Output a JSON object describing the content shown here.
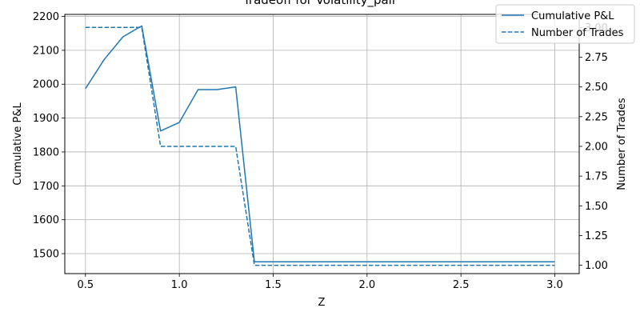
{
  "chart_data": {
    "type": "line",
    "title": "Tradeoff for Volatility_pair",
    "xlabel": "Z",
    "ylabel_left": "Cumulative P&L",
    "ylabel_right": "Number of Trades",
    "xlim": [
      0.39,
      3.13
    ],
    "ylim_left": [
      1441,
      2206
    ],
    "ylim_right": [
      0.93,
      3.11
    ],
    "x_ticks": [
      0.5,
      1.0,
      1.5,
      2.0,
      2.5,
      3.0
    ],
    "x_tick_labels": [
      "0.5",
      "1.0",
      "1.5",
      "2.0",
      "2.5",
      "3.0"
    ],
    "y_left_ticks": [
      1500,
      1600,
      1700,
      1800,
      1900,
      2000,
      2100,
      2200
    ],
    "y_left_tick_labels": [
      "1500",
      "1600",
      "1700",
      "1800",
      "1900",
      "2000",
      "2100",
      "2200"
    ],
    "y_right_ticks": [
      1.0,
      1.25,
      1.5,
      1.75,
      2.0,
      2.25,
      2.5,
      2.75,
      3.0
    ],
    "y_right_tick_labels": [
      "1.00",
      "1.25",
      "1.50",
      "1.75",
      "2.00",
      "2.25",
      "2.50",
      "2.75",
      "3.00"
    ],
    "grid": true,
    "legend_position": "top-right",
    "color": "#1f77b4",
    "series": [
      {
        "name": "Cumulative P&L",
        "axis": "left",
        "style": "solid",
        "x": [
          0.5,
          0.6,
          0.7,
          0.8,
          0.9,
          1.0,
          1.1,
          1.2,
          1.3,
          1.4,
          1.5,
          1.6,
          1.7,
          1.8,
          1.9,
          2.0,
          2.1,
          2.2,
          2.3,
          2.4,
          2.5,
          2.6,
          2.7,
          2.8,
          2.9,
          3.0
        ],
        "values": [
          1987,
          2073,
          2140,
          2172,
          1862,
          1887,
          1984,
          1984,
          1992,
          1476,
          1476,
          1476,
          1476,
          1476,
          1476,
          1476,
          1476,
          1476,
          1476,
          1476,
          1476,
          1476,
          1476,
          1476,
          1476,
          1476
        ]
      },
      {
        "name": "Number of Trades",
        "axis": "right",
        "style": "dashed",
        "x": [
          0.5,
          0.6,
          0.7,
          0.8,
          0.9,
          1.0,
          1.1,
          1.2,
          1.3,
          1.4,
          1.5,
          1.6,
          1.7,
          1.8,
          1.9,
          2.0,
          2.1,
          2.2,
          2.3,
          2.4,
          2.5,
          2.6,
          2.7,
          2.8,
          2.9,
          3.0
        ],
        "values": [
          3,
          3,
          3,
          3,
          2,
          2,
          2,
          2,
          2,
          1,
          1,
          1,
          1,
          1,
          1,
          1,
          1,
          1,
          1,
          1,
          1,
          1,
          1,
          1,
          1,
          1
        ]
      }
    ]
  }
}
